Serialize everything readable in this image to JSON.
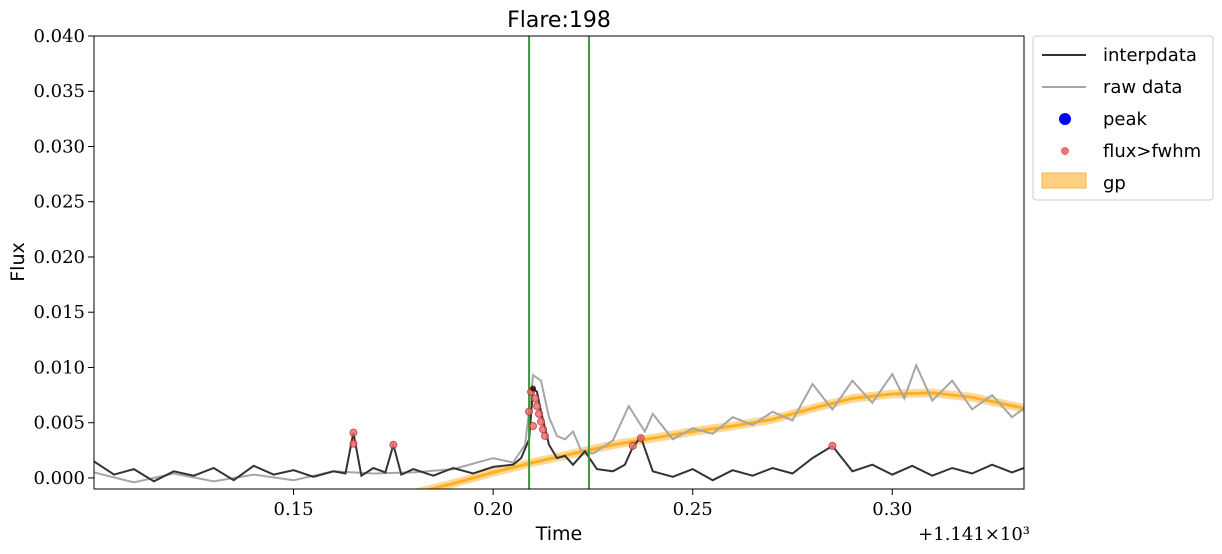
{
  "chart_data": {
    "type": "line",
    "title": "Flare:198",
    "xlabel": "Time",
    "ylabel": "Flux",
    "x_offset_label": "+1.141×10³",
    "xlim": [
      1141.1,
      1141.333
    ],
    "ylim": [
      -0.001,
      0.04
    ],
    "xticks": [
      1141.15,
      1141.2,
      1141.25,
      1141.3
    ],
    "xtick_labels": [
      "0.15",
      "0.20",
      "0.25",
      "0.30"
    ],
    "yticks": [
      0.0,
      0.005,
      0.01,
      0.015,
      0.02,
      0.025,
      0.03,
      0.035,
      0.04
    ],
    "ytick_labels": [
      "0.000",
      "0.005",
      "0.010",
      "0.015",
      "0.020",
      "0.025",
      "0.030",
      "0.035",
      "0.040"
    ],
    "legend_position": "outside-top-right",
    "colors": {
      "interpdata": "#333333",
      "raw_data": "#a6a6a6",
      "peak": "#0000ff",
      "fwhm": "#f07070",
      "gp": "#ffb020",
      "gp_fill": "#fdd080",
      "vline": "#3a9a3a"
    },
    "vlines": [
      1141.209,
      1141.224
    ],
    "series": [
      {
        "name": "interpdata",
        "points": [
          [
            1141.1,
            0.0015
          ],
          [
            1141.105,
            0.0003
          ],
          [
            1141.11,
            0.0008
          ],
          [
            1141.115,
            -0.0003
          ],
          [
            1141.12,
            0.0006
          ],
          [
            1141.125,
            0.0002
          ],
          [
            1141.13,
            0.0009
          ],
          [
            1141.135,
            -0.0002
          ],
          [
            1141.14,
            0.0011
          ],
          [
            1141.145,
            0.0003
          ],
          [
            1141.15,
            0.0007
          ],
          [
            1141.155,
            0.0001
          ],
          [
            1141.16,
            0.0006
          ],
          [
            1141.163,
            0.0004
          ],
          [
            1141.165,
            0.0041
          ],
          [
            1141.167,
            0.0002
          ],
          [
            1141.17,
            0.0009
          ],
          [
            1141.173,
            0.0005
          ],
          [
            1141.175,
            0.003
          ],
          [
            1141.177,
            0.0003
          ],
          [
            1141.18,
            0.0008
          ],
          [
            1141.185,
            0.0002
          ],
          [
            1141.19,
            0.0009
          ],
          [
            1141.195,
            0.0004
          ],
          [
            1141.2,
            0.001
          ],
          [
            1141.205,
            0.0012
          ],
          [
            1141.207,
            0.0018
          ],
          [
            1141.209,
            0.0035
          ],
          [
            1141.21,
            0.0081
          ],
          [
            1141.211,
            0.0078
          ],
          [
            1141.212,
            0.006
          ],
          [
            1141.213,
            0.0045
          ],
          [
            1141.214,
            0.003
          ],
          [
            1141.216,
            0.0018
          ],
          [
            1141.218,
            0.002
          ],
          [
            1141.22,
            0.0012
          ],
          [
            1141.223,
            0.0024
          ],
          [
            1141.226,
            0.0008
          ],
          [
            1141.23,
            0.0006
          ],
          [
            1141.233,
            0.0012
          ],
          [
            1141.235,
            0.0028
          ],
          [
            1141.237,
            0.0037
          ],
          [
            1141.24,
            0.0006
          ],
          [
            1141.245,
            0.0001
          ],
          [
            1141.25,
            0.0008
          ],
          [
            1141.255,
            -0.0002
          ],
          [
            1141.26,
            0.0007
          ],
          [
            1141.265,
            0.0002
          ],
          [
            1141.27,
            0.0009
          ],
          [
            1141.275,
            0.0004
          ],
          [
            1141.28,
            0.0018
          ],
          [
            1141.285,
            0.0029
          ],
          [
            1141.29,
            0.0006
          ],
          [
            1141.295,
            0.0012
          ],
          [
            1141.3,
            0.0003
          ],
          [
            1141.305,
            0.0011
          ],
          [
            1141.31,
            0.0002
          ],
          [
            1141.315,
            0.0009
          ],
          [
            1141.32,
            0.0004
          ],
          [
            1141.325,
            0.0012
          ],
          [
            1141.33,
            0.0005
          ],
          [
            1141.333,
            0.0009
          ]
        ]
      },
      {
        "name": "raw data",
        "points": [
          [
            1141.1,
            0.0005
          ],
          [
            1141.11,
            -0.0004
          ],
          [
            1141.12,
            0.0004
          ],
          [
            1141.13,
            -0.0003
          ],
          [
            1141.14,
            0.0003
          ],
          [
            1141.15,
            -0.0002
          ],
          [
            1141.16,
            0.0006
          ],
          [
            1141.17,
            0.0004
          ],
          [
            1141.18,
            0.0005
          ],
          [
            1141.19,
            0.0008
          ],
          [
            1141.2,
            0.0018
          ],
          [
            1141.205,
            0.0014
          ],
          [
            1141.208,
            0.003
          ],
          [
            1141.21,
            0.0093
          ],
          [
            1141.212,
            0.0088
          ],
          [
            1141.214,
            0.0055
          ],
          [
            1141.216,
            0.0038
          ],
          [
            1141.218,
            0.0035
          ],
          [
            1141.22,
            0.0042
          ],
          [
            1141.222,
            0.0025
          ],
          [
            1141.225,
            0.0022
          ],
          [
            1141.23,
            0.0034
          ],
          [
            1141.234,
            0.0065
          ],
          [
            1141.238,
            0.0042
          ],
          [
            1141.24,
            0.0058
          ],
          [
            1141.245,
            0.0035
          ],
          [
            1141.25,
            0.0045
          ],
          [
            1141.255,
            0.004
          ],
          [
            1141.26,
            0.0055
          ],
          [
            1141.265,
            0.0048
          ],
          [
            1141.27,
            0.006
          ],
          [
            1141.275,
            0.0052
          ],
          [
            1141.28,
            0.0085
          ],
          [
            1141.285,
            0.0062
          ],
          [
            1141.29,
            0.0088
          ],
          [
            1141.295,
            0.0068
          ],
          [
            1141.3,
            0.0094
          ],
          [
            1141.303,
            0.0072
          ],
          [
            1141.306,
            0.0102
          ],
          [
            1141.31,
            0.007
          ],
          [
            1141.315,
            0.0088
          ],
          [
            1141.32,
            0.0062
          ],
          [
            1141.325,
            0.0075
          ],
          [
            1141.33,
            0.0055
          ],
          [
            1141.333,
            0.0063
          ]
        ]
      },
      {
        "name": "gp",
        "points": [
          [
            1141.18,
            -0.0014
          ],
          [
            1141.19,
            -0.0005
          ],
          [
            1141.2,
            0.0005
          ],
          [
            1141.21,
            0.0014
          ],
          [
            1141.22,
            0.0022
          ],
          [
            1141.23,
            0.003
          ],
          [
            1141.24,
            0.0036
          ],
          [
            1141.25,
            0.0042
          ],
          [
            1141.26,
            0.0047
          ],
          [
            1141.27,
            0.0053
          ],
          [
            1141.28,
            0.0063
          ],
          [
            1141.29,
            0.0072
          ],
          [
            1141.3,
            0.0076
          ],
          [
            1141.31,
            0.0077
          ],
          [
            1141.32,
            0.0073
          ],
          [
            1141.333,
            0.0063
          ]
        ],
        "band": 0.0004
      }
    ],
    "peak": [
      1141.21,
      0.0081
    ],
    "fwhm_points": [
      [
        1141.165,
        0.0041
      ],
      [
        1141.165,
        0.0031
      ],
      [
        1141.175,
        0.003
      ],
      [
        1141.2095,
        0.0078
      ],
      [
        1141.2105,
        0.0072
      ],
      [
        1141.211,
        0.0065
      ],
      [
        1141.2115,
        0.0058
      ],
      [
        1141.212,
        0.0051
      ],
      [
        1141.2125,
        0.0044
      ],
      [
        1141.213,
        0.0038
      ],
      [
        1141.209,
        0.006
      ],
      [
        1141.21,
        0.0047
      ],
      [
        1141.235,
        0.0029
      ],
      [
        1141.237,
        0.0036
      ],
      [
        1141.285,
        0.0029
      ]
    ],
    "legend": [
      "interpdata",
      "raw data",
      "peak",
      "flux>fwhm",
      "gp"
    ]
  }
}
